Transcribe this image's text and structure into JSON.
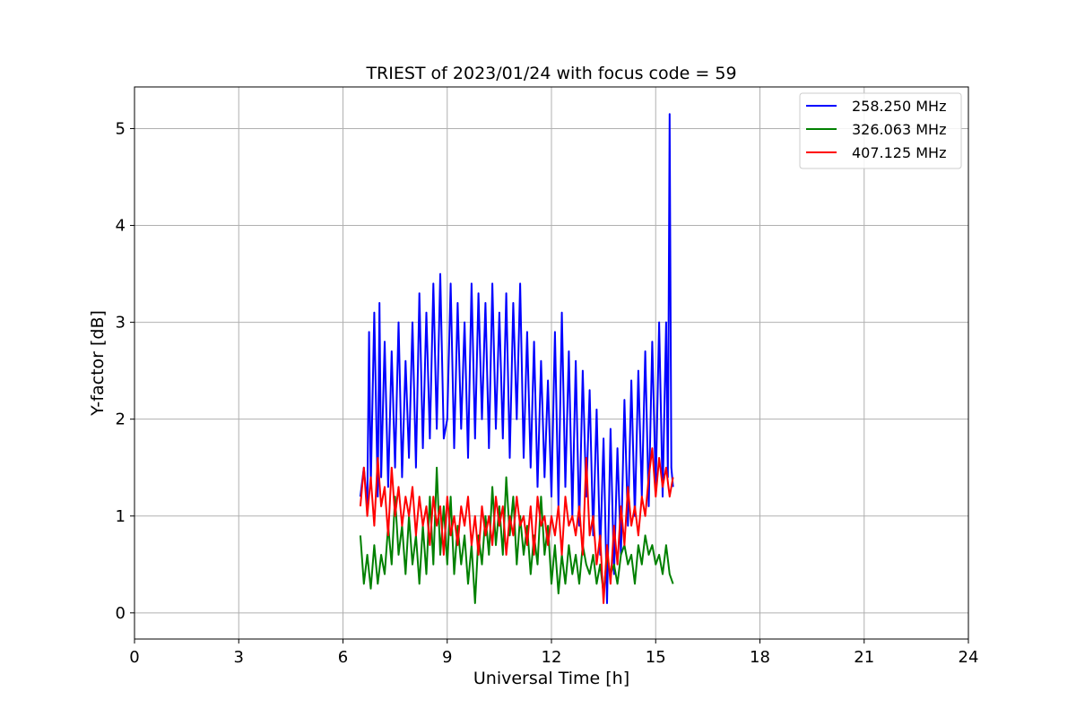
{
  "chart_data": {
    "type": "line",
    "title": "TRIEST of 2023/01/24 with focus code = 59",
    "xlabel": "Universal Time [h]",
    "ylabel": "Y-factor [dB]",
    "xlim": [
      0,
      24
    ],
    "ylim": [
      -0.27,
      5.43
    ],
    "xticks": [
      0,
      3,
      6,
      9,
      12,
      15,
      18,
      21,
      24
    ],
    "yticks": [
      0,
      1,
      2,
      3,
      4,
      5
    ],
    "grid": true,
    "legend_position": "top-right",
    "series": [
      {
        "name": "258.250 MHz",
        "color": "#0000ff",
        "x": [
          6.5,
          6.6,
          6.7,
          6.75,
          6.8,
          6.9,
          7.0,
          7.05,
          7.1,
          7.2,
          7.3,
          7.4,
          7.5,
          7.6,
          7.7,
          7.8,
          7.9,
          8.0,
          8.1,
          8.2,
          8.3,
          8.4,
          8.5,
          8.6,
          8.7,
          8.8,
          8.9,
          9.0,
          9.1,
          9.2,
          9.3,
          9.4,
          9.5,
          9.6,
          9.7,
          9.8,
          9.9,
          10.0,
          10.1,
          10.2,
          10.3,
          10.4,
          10.5,
          10.6,
          10.7,
          10.8,
          10.9,
          11.0,
          11.1,
          11.2,
          11.3,
          11.4,
          11.5,
          11.6,
          11.7,
          11.8,
          11.9,
          12.0,
          12.1,
          12.2,
          12.3,
          12.4,
          12.5,
          12.6,
          12.7,
          12.8,
          12.9,
          13.0,
          13.1,
          13.2,
          13.3,
          13.4,
          13.5,
          13.6,
          13.7,
          13.8,
          13.9,
          14.0,
          14.1,
          14.2,
          14.3,
          14.4,
          14.5,
          14.6,
          14.7,
          14.8,
          14.9,
          15.0,
          15.1,
          15.2,
          15.3,
          15.35,
          15.4,
          15.45,
          15.5
        ],
        "y": [
          1.2,
          1.5,
          1.1,
          2.9,
          1.3,
          3.1,
          1.2,
          3.2,
          1.4,
          2.8,
          1.3,
          2.7,
          1.5,
          3.0,
          1.4,
          2.6,
          1.6,
          3.0,
          1.5,
          3.3,
          1.7,
          3.1,
          1.8,
          3.4,
          1.9,
          3.5,
          1.8,
          2.0,
          3.4,
          1.7,
          3.2,
          1.9,
          3.0,
          1.6,
          3.4,
          1.8,
          3.3,
          2.0,
          3.2,
          1.7,
          3.4,
          1.9,
          3.1,
          1.8,
          3.3,
          1.6,
          3.2,
          2.0,
          3.4,
          1.6,
          2.9,
          1.5,
          2.8,
          1.3,
          2.6,
          1.4,
          2.4,
          1.2,
          2.9,
          1.1,
          3.1,
          1.3,
          2.7,
          1.0,
          2.6,
          0.9,
          2.5,
          1.2,
          2.3,
          0.8,
          2.1,
          0.6,
          1.8,
          0.1,
          1.9,
          0.4,
          1.7,
          0.6,
          2.2,
          0.9,
          2.4,
          1.0,
          2.5,
          1.2,
          2.7,
          1.1,
          2.8,
          1.3,
          3.0,
          1.2,
          3.0,
          1.4,
          5.15,
          1.5,
          1.3
        ]
      },
      {
        "name": "326.063 MHz",
        "color": "#008000",
        "x": [
          6.5,
          6.6,
          6.7,
          6.8,
          6.9,
          7.0,
          7.1,
          7.2,
          7.3,
          7.4,
          7.5,
          7.6,
          7.7,
          7.8,
          7.9,
          8.0,
          8.1,
          8.2,
          8.3,
          8.4,
          8.5,
          8.6,
          8.7,
          8.8,
          8.9,
          9.0,
          9.1,
          9.2,
          9.3,
          9.4,
          9.5,
          9.6,
          9.7,
          9.8,
          9.9,
          10.0,
          10.1,
          10.2,
          10.3,
          10.4,
          10.5,
          10.6,
          10.7,
          10.8,
          10.9,
          11.0,
          11.1,
          11.2,
          11.3,
          11.4,
          11.5,
          11.6,
          11.7,
          11.8,
          11.9,
          12.0,
          12.1,
          12.2,
          12.3,
          12.4,
          12.5,
          12.6,
          12.7,
          12.8,
          12.9,
          13.0,
          13.1,
          13.2,
          13.3,
          13.4,
          13.5,
          13.6,
          13.7,
          13.8,
          13.9,
          14.0,
          14.1,
          14.2,
          14.3,
          14.4,
          14.5,
          14.6,
          14.7,
          14.8,
          14.9,
          15.0,
          15.1,
          15.2,
          15.3,
          15.4,
          15.5
        ],
        "y": [
          0.8,
          0.3,
          0.6,
          0.25,
          0.7,
          0.3,
          0.6,
          0.4,
          0.9,
          0.5,
          1.2,
          0.6,
          0.9,
          0.4,
          1.0,
          0.5,
          0.8,
          0.3,
          0.9,
          0.4,
          1.2,
          0.5,
          1.5,
          0.6,
          1.1,
          0.5,
          1.2,
          0.4,
          0.9,
          0.5,
          0.8,
          0.3,
          0.7,
          0.1,
          0.8,
          0.5,
          1.0,
          0.6,
          1.3,
          0.7,
          1.1,
          0.6,
          1.4,
          0.8,
          1.2,
          0.5,
          1.0,
          0.6,
          0.9,
          0.4,
          0.8,
          0.5,
          1.2,
          0.6,
          0.9,
          0.3,
          0.7,
          0.2,
          0.6,
          0.3,
          0.7,
          0.4,
          0.6,
          0.3,
          0.7,
          0.5,
          0.4,
          0.6,
          0.3,
          0.5,
          0.2,
          0.6,
          0.4,
          0.5,
          0.3,
          0.6,
          0.7,
          0.5,
          0.6,
          0.3,
          0.7,
          0.5,
          0.8,
          0.6,
          0.7,
          0.5,
          0.6,
          0.4,
          0.7,
          0.4,
          0.3
        ]
      },
      {
        "name": "407.125 MHz",
        "color": "#ff0000",
        "x": [
          6.5,
          6.6,
          6.7,
          6.8,
          6.9,
          7.0,
          7.1,
          7.2,
          7.3,
          7.4,
          7.5,
          7.6,
          7.7,
          7.8,
          7.9,
          8.0,
          8.1,
          8.2,
          8.3,
          8.4,
          8.5,
          8.6,
          8.7,
          8.8,
          8.9,
          9.0,
          9.1,
          9.2,
          9.3,
          9.4,
          9.5,
          9.6,
          9.7,
          9.8,
          9.9,
          10.0,
          10.1,
          10.2,
          10.3,
          10.4,
          10.5,
          10.6,
          10.7,
          10.8,
          10.9,
          11.0,
          11.1,
          11.2,
          11.3,
          11.4,
          11.5,
          11.6,
          11.7,
          11.8,
          11.9,
          12.0,
          12.1,
          12.2,
          12.3,
          12.4,
          12.5,
          12.6,
          12.7,
          12.8,
          12.9,
          13.0,
          13.1,
          13.2,
          13.3,
          13.4,
          13.5,
          13.6,
          13.7,
          13.8,
          13.9,
          14.0,
          14.1,
          14.2,
          14.3,
          14.4,
          14.5,
          14.6,
          14.7,
          14.8,
          14.9,
          15.0,
          15.1,
          15.2,
          15.3,
          15.4,
          15.5
        ],
        "y": [
          1.1,
          1.5,
          1.0,
          1.4,
          0.9,
          1.6,
          1.1,
          1.3,
          0.8,
          1.5,
          1.0,
          1.3,
          0.9,
          1.2,
          1.0,
          1.3,
          0.8,
          1.2,
          0.9,
          1.1,
          0.7,
          1.2,
          0.9,
          1.1,
          0.6,
          1.2,
          0.8,
          1.0,
          0.7,
          1.1,
          0.9,
          1.2,
          0.7,
          1.0,
          0.6,
          1.1,
          0.8,
          1.0,
          0.7,
          1.2,
          0.9,
          1.1,
          0.6,
          1.0,
          0.8,
          1.2,
          0.9,
          1.0,
          0.7,
          1.1,
          0.6,
          1.2,
          0.9,
          1.0,
          0.7,
          1.0,
          0.8,
          1.1,
          0.6,
          1.2,
          0.9,
          1.0,
          0.8,
          1.1,
          0.6,
          1.6,
          0.8,
          1.0,
          0.5,
          0.8,
          0.1,
          0.7,
          0.3,
          0.9,
          0.5,
          1.1,
          0.7,
          1.3,
          0.9,
          1.1,
          0.8,
          1.2,
          1.0,
          1.4,
          1.7,
          1.2,
          1.6,
          1.3,
          1.5,
          1.2,
          1.4
        ]
      }
    ]
  }
}
